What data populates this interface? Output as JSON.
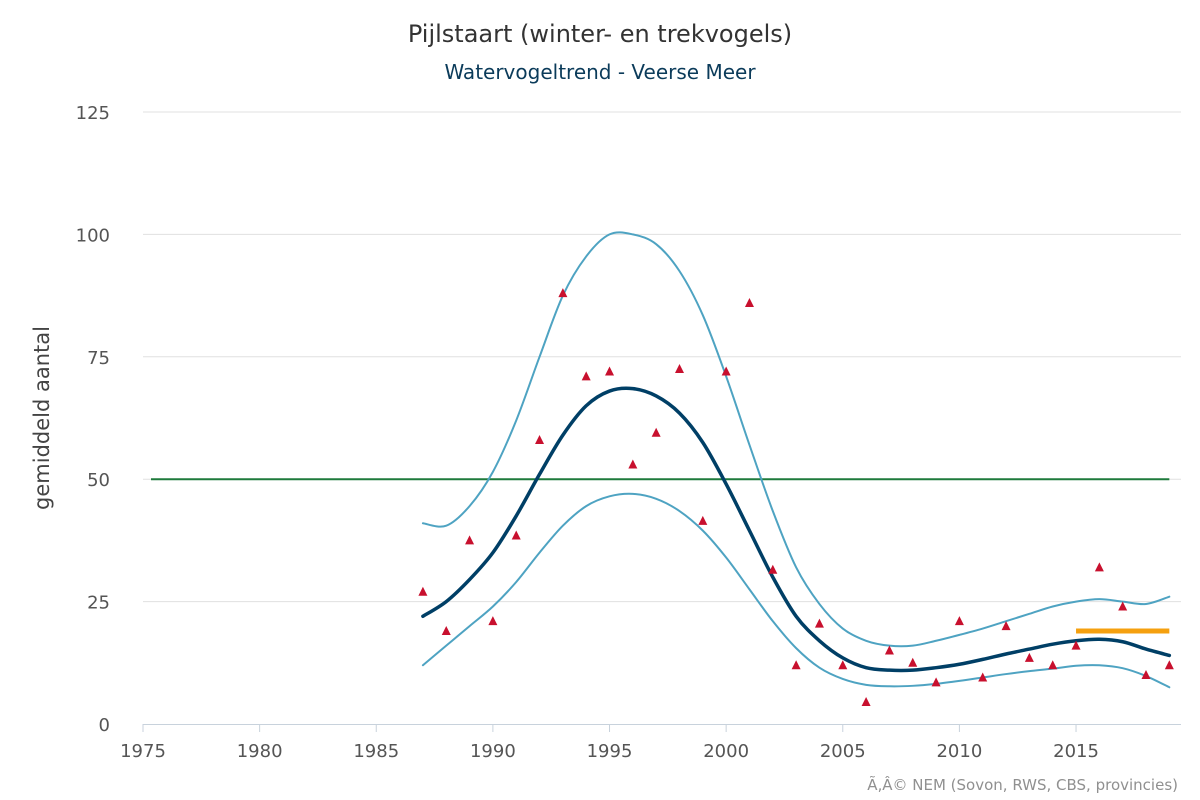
{
  "chart_data": {
    "type": "line",
    "title": "Pijlstaart (winter- en trekvogels)",
    "subtitle": "Watervogeltrend - Veerse Meer",
    "ylabel": "gemiddeld aantal",
    "xlabel": "",
    "xlim": [
      1975,
      2019.5
    ],
    "ylim": [
      0,
      125
    ],
    "x_ticks": [
      1975,
      1980,
      1985,
      1990,
      1995,
      2000,
      2005,
      2010,
      2015
    ],
    "y_ticks": [
      0,
      25,
      50,
      75,
      100,
      125
    ],
    "grid": "horizontal",
    "credit": "Ã‚Â© NEM (Sovon, RWS, CBS, provincies)",
    "colors": {
      "trend": "#003f66",
      "band": "#4ea3c2",
      "points": "#c8102e",
      "reference": "#1e7a3c",
      "target": "#f5a00f",
      "grid": "#e0e0e0"
    },
    "x": [
      1987,
      1988,
      1989,
      1990,
      1991,
      1992,
      1993,
      1994,
      1995,
      1996,
      1997,
      1998,
      1999,
      2000,
      2001,
      2002,
      2003,
      2004,
      2005,
      2006,
      2007,
      2008,
      2009,
      2010,
      2011,
      2012,
      2013,
      2014,
      2015,
      2016,
      2017,
      2018,
      2019
    ],
    "series": [
      {
        "role": "trend",
        "values": [
          22,
          25,
          29.5,
          35,
          42.5,
          51,
          59,
          65,
          68,
          68.5,
          67,
          63.5,
          57.5,
          49,
          39.5,
          30,
          22,
          17,
          13.5,
          11.5,
          11,
          11,
          11.5,
          12.2,
          13.2,
          14.3,
          15.3,
          16.3,
          17,
          17.3,
          16.8,
          15.3,
          14
        ]
      },
      {
        "role": "upper-bound",
        "values": [
          41,
          40.5,
          44.5,
          51.5,
          62,
          75,
          87.5,
          95.5,
          100,
          100,
          98,
          92.5,
          83.5,
          71,
          57,
          43.5,
          32,
          24.5,
          19.5,
          17,
          16,
          16,
          17,
          18.2,
          19.5,
          21,
          22.5,
          24,
          25,
          25.5,
          25,
          24.5,
          26
        ]
      },
      {
        "role": "lower-bound",
        "values": [
          12,
          16,
          20,
          24,
          29,
          35,
          40.5,
          44.5,
          46.5,
          47,
          46,
          43.5,
          39.5,
          34,
          27.5,
          21,
          15.5,
          11.5,
          9.2,
          8,
          7.7,
          7.8,
          8.2,
          8.8,
          9.5,
          10.2,
          10.8,
          11.3,
          11.9,
          12,
          11.4,
          9.8,
          7.5
        ]
      },
      {
        "role": "observed",
        "marker": "triangle",
        "values": [
          27,
          19,
          37.5,
          21,
          38.5,
          58,
          88,
          71,
          72,
          53,
          59.5,
          72.5,
          41.5,
          72,
          86,
          31.5,
          12,
          20.5,
          12,
          4.5,
          15,
          12.5,
          8.5,
          21,
          9.5,
          20,
          13.5,
          12,
          16,
          32,
          24,
          10,
          12
        ]
      }
    ],
    "reference_line": {
      "y": 50,
      "x": [
        1975,
        2019
      ]
    },
    "target_line": {
      "y": 19,
      "x": [
        2015,
        2019
      ]
    }
  }
}
